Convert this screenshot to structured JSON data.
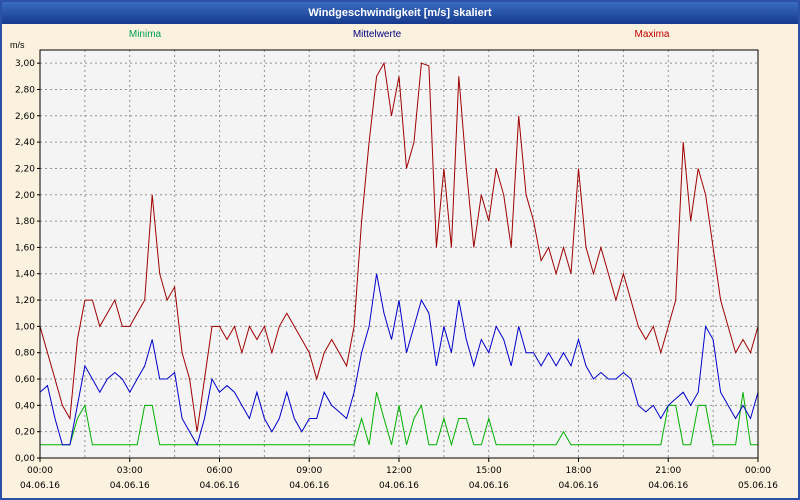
{
  "title": "Windgeschwindigkeit [m/s] skaliert",
  "chart_data": {
    "type": "line",
    "title": "Windgeschwindigkeit [m/s] skaliert",
    "ylabel": "m/s",
    "xlabel": "",
    "ylim": [
      0,
      3.1
    ],
    "x_hours": 24,
    "x_tick_step": 3,
    "x_grid_step": 1.5,
    "y_tick_step": 0.2,
    "interval_minutes": 15,
    "grid": true,
    "legend_position": "top",
    "y_ticks": [
      "0,00",
      "0,20",
      "0,40",
      "0,60",
      "0,80",
      "1,00",
      "1,20",
      "1,40",
      "1,60",
      "1,80",
      "2,00",
      "2,20",
      "2,40",
      "2,60",
      "2,80",
      "3,00"
    ],
    "x_ticks": [
      {
        "label": "00:00",
        "date": "04.06.16"
      },
      {
        "label": "03:00",
        "date": "04.06.16"
      },
      {
        "label": "06:00",
        "date": "04.06.16"
      },
      {
        "label": "09:00",
        "date": "04.06.16"
      },
      {
        "label": "12:00",
        "date": "04.06.16"
      },
      {
        "label": "15:00",
        "date": "04.06.16"
      },
      {
        "label": "18:00",
        "date": "04.06.16"
      },
      {
        "label": "21:00",
        "date": "04.06.16"
      },
      {
        "label": "00:00",
        "date": "05.06.16"
      }
    ],
    "colors": {
      "background": "#faf2de",
      "plot_background": "#f4f4f4",
      "grid": "#919191",
      "axis": "#000000",
      "titlebar_start": "#3a6cc0",
      "titlebar_end": "#16398c",
      "border": "#2b50a8"
    },
    "series": [
      {
        "name": "Minima",
        "color": "#00b000",
        "label_color": "#00a050",
        "values": [
          0.1,
          0.1,
          0.1,
          0.1,
          0.1,
          0.3,
          0.4,
          0.1,
          0.1,
          0.1,
          0.1,
          0.1,
          0.1,
          0.1,
          0.4,
          0.4,
          0.1,
          0.1,
          0.1,
          0.1,
          0.1,
          0.1,
          0.1,
          0.1,
          0.1,
          0.1,
          0.1,
          0.1,
          0.1,
          0.1,
          0.1,
          0.1,
          0.1,
          0.1,
          0.1,
          0.1,
          0.1,
          0.1,
          0.1,
          0.1,
          0.1,
          0.1,
          0.1,
          0.3,
          0.1,
          0.5,
          0.3,
          0.1,
          0.4,
          0.1,
          0.3,
          0.4,
          0.1,
          0.1,
          0.3,
          0.1,
          0.3,
          0.3,
          0.1,
          0.1,
          0.3,
          0.1,
          0.1,
          0.1,
          0.1,
          0.1,
          0.1,
          0.1,
          0.1,
          0.1,
          0.2,
          0.1,
          0.1,
          0.1,
          0.1,
          0.1,
          0.1,
          0.1,
          0.1,
          0.1,
          0.1,
          0.1,
          0.1,
          0.1,
          0.4,
          0.4,
          0.1,
          0.1,
          0.4,
          0.4,
          0.1,
          0.1,
          0.1,
          0.1,
          0.5,
          0.1,
          0.1
        ]
      },
      {
        "name": "Mittelwerte",
        "color": "#0000cc",
        "label_color": "#000080",
        "values": [
          0.5,
          0.55,
          0.3,
          0.1,
          0.1,
          0.4,
          0.7,
          0.6,
          0.5,
          0.6,
          0.65,
          0.6,
          0.5,
          0.6,
          0.7,
          0.9,
          0.6,
          0.6,
          0.65,
          0.3,
          0.2,
          0.1,
          0.3,
          0.6,
          0.5,
          0.55,
          0.5,
          0.4,
          0.3,
          0.5,
          0.3,
          0.2,
          0.3,
          0.5,
          0.3,
          0.2,
          0.3,
          0.3,
          0.5,
          0.4,
          0.35,
          0.3,
          0.5,
          0.8,
          1.0,
          1.4,
          1.1,
          0.9,
          1.2,
          0.8,
          1.0,
          1.2,
          1.1,
          0.7,
          1.0,
          0.8,
          1.2,
          0.9,
          0.7,
          0.9,
          0.8,
          1.0,
          0.9,
          0.7,
          1.0,
          0.8,
          0.8,
          0.7,
          0.8,
          0.7,
          0.8,
          0.7,
          0.9,
          0.7,
          0.6,
          0.65,
          0.6,
          0.6,
          0.65,
          0.6,
          0.4,
          0.35,
          0.4,
          0.3,
          0.4,
          0.45,
          0.5,
          0.4,
          0.5,
          1.0,
          0.9,
          0.5,
          0.4,
          0.3,
          0.4,
          0.3,
          0.5
        ]
      },
      {
        "name": "Maxima",
        "color": "#a00000",
        "label_color": "#c00000",
        "values": [
          1.0,
          0.8,
          0.6,
          0.4,
          0.3,
          0.9,
          1.2,
          1.2,
          1.0,
          1.1,
          1.2,
          1.0,
          1.0,
          1.1,
          1.2,
          2.0,
          1.4,
          1.2,
          1.3,
          0.8,
          0.6,
          0.2,
          0.6,
          1.0,
          1.0,
          0.9,
          1.0,
          0.8,
          1.0,
          0.9,
          1.0,
          0.8,
          1.0,
          1.1,
          1.0,
          0.9,
          0.8,
          0.6,
          0.8,
          0.9,
          0.8,
          0.7,
          1.0,
          1.8,
          2.4,
          2.9,
          3.0,
          2.6,
          2.9,
          2.2,
          2.4,
          3.0,
          2.98,
          1.6,
          2.2,
          1.6,
          2.9,
          2.2,
          1.6,
          2.0,
          1.8,
          2.2,
          2.0,
          1.6,
          2.6,
          2.0,
          1.8,
          1.5,
          1.6,
          1.4,
          1.6,
          1.4,
          2.2,
          1.6,
          1.4,
          1.6,
          1.4,
          1.2,
          1.4,
          1.2,
          1.0,
          0.9,
          1.0,
          0.8,
          1.0,
          1.2,
          2.4,
          1.8,
          2.2,
          2.0,
          1.6,
          1.2,
          1.0,
          0.8,
          0.9,
          0.8,
          1.0
        ]
      }
    ]
  }
}
